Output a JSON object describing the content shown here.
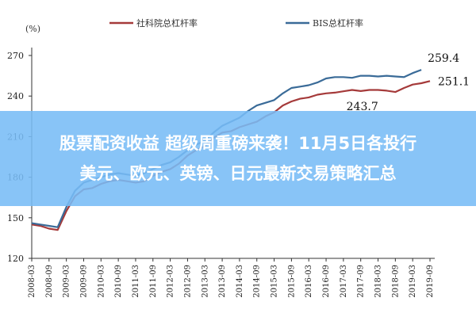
{
  "chart_data": {
    "type": "line",
    "unit_label": "(%)",
    "ylim": [
      120,
      270
    ],
    "yticks": [
      120,
      150,
      180,
      210,
      240,
      270
    ],
    "x_labels": [
      "2008-03",
      "2008-09",
      "2009-03",
      "2009-09",
      "2010-03",
      "2010-09",
      "2011-03",
      "2011-09",
      "2012-03",
      "2012-09",
      "2013-03",
      "2013-09",
      "2014-03",
      "2014-09",
      "2015-03",
      "2015-09",
      "2016-03",
      "2016-09",
      "2017-03",
      "2017-09",
      "2018-03",
      "2018-09",
      "2019-03",
      "2019-09"
    ],
    "legend_placement": "top",
    "series": [
      {
        "name": "社科院总杠杆率",
        "color": "#a53a3a",
        "x": [
          0,
          0.5,
          1,
          1.5,
          2,
          2.5,
          3,
          3.5,
          4,
          4.5,
          5,
          5.5,
          6,
          6.5,
          7,
          7.5,
          8,
          8.5,
          9,
          9.5,
          10,
          10.5,
          11,
          11.5,
          12,
          12.5,
          13,
          13.5,
          14,
          14.5,
          15,
          15.5,
          16,
          16.5,
          17,
          17.5,
          18,
          18.5,
          19,
          19.5,
          20,
          20.5,
          21,
          21.5,
          22,
          22.5,
          23
        ],
        "values": [
          145,
          144,
          142,
          141,
          155,
          166,
          171,
          172,
          175,
          177,
          178,
          177,
          176,
          177,
          181,
          184,
          186,
          190,
          196,
          200,
          203,
          209,
          213,
          214,
          217,
          219,
          221,
          225,
          228,
          233,
          236,
          238,
          239,
          241,
          242,
          242.5,
          243.5,
          244.5,
          243.7,
          244.5,
          244.5,
          244,
          243,
          246,
          248.5,
          249.5,
          251.1
        ]
      },
      {
        "name": "BIS总杠杆率",
        "color": "#3a6b98",
        "x": [
          0,
          0.5,
          1,
          1.5,
          2,
          2.5,
          3,
          3.5,
          4,
          4.5,
          5,
          5.5,
          6,
          6.5,
          7,
          7.5,
          8,
          8.5,
          9,
          9.5,
          10,
          10.5,
          11,
          11.5,
          12,
          12.5,
          13,
          13.5,
          14,
          14.5,
          15,
          15.5,
          16,
          16.5,
          17,
          17.5,
          18,
          18.5,
          19,
          19.5,
          20,
          20.5,
          21,
          21.5,
          22,
          22.5
        ],
        "values": [
          146,
          145,
          144,
          143,
          158,
          170,
          176,
          178,
          180,
          182,
          183,
          182,
          181,
          183,
          186,
          189,
          191,
          195,
          200,
          204,
          207,
          213,
          218,
          221,
          224,
          229,
          233,
          235,
          237,
          242,
          246,
          247,
          248,
          250,
          253,
          254,
          254,
          253.5,
          255,
          255,
          254.5,
          255,
          254.5,
          254,
          257,
          259.4
        ]
      }
    ],
    "annotations": [
      "259.4",
      "251.1",
      "243.7"
    ]
  },
  "banner": {
    "line1": "股票配资收益 超级周重磅来袭！11月5日各投行",
    "line2": "美元、欧元、英镑、日元最新交易策略汇总"
  }
}
